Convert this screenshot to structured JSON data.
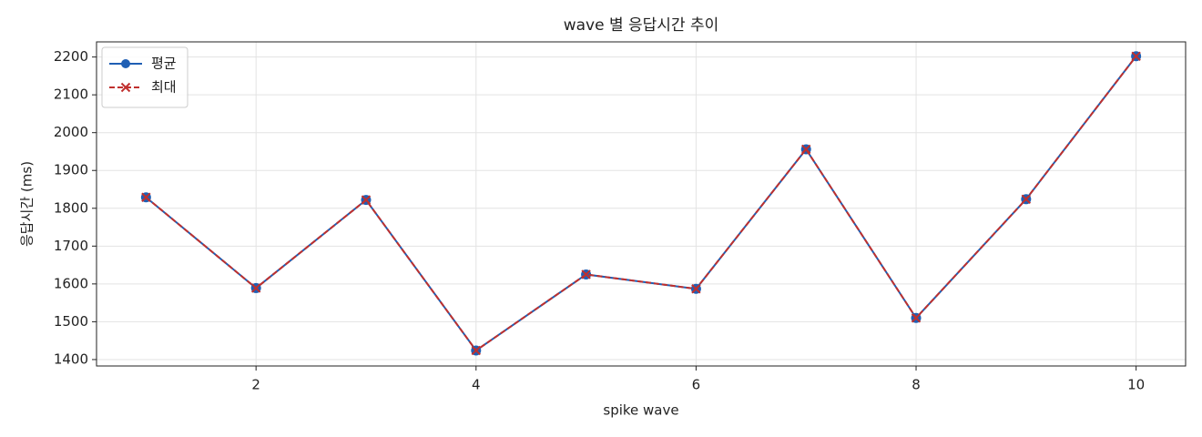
{
  "chart_data": {
    "type": "line",
    "title": "wave 별 응답시간 추이",
    "xlabel": "spike wave",
    "ylabel": "응답시간 (ms)",
    "x": [
      1,
      2,
      3,
      4,
      5,
      6,
      7,
      8,
      9,
      10
    ],
    "series": [
      {
        "name": "평균",
        "color": "#1f5fb4",
        "marker": "o",
        "linestyle": "solid",
        "values": [
          1829,
          1589,
          1822,
          1424,
          1625,
          1587,
          1956,
          1510,
          1824,
          2202
        ]
      },
      {
        "name": "최대",
        "color": "#c0302e",
        "marker": "x",
        "linestyle": "dashed",
        "values": [
          1829,
          1589,
          1822,
          1424,
          1625,
          1587,
          1956,
          1510,
          1824,
          2202
        ]
      }
    ],
    "xlim": [
      0.55,
      10.45
    ],
    "xticks": [
      2,
      4,
      6,
      8,
      10
    ],
    "ylim": [
      1383,
      2240
    ],
    "yticks": [
      1400,
      1500,
      1600,
      1700,
      1800,
      1900,
      2000,
      2100,
      2200
    ],
    "grid": true,
    "legend": "upper left"
  }
}
